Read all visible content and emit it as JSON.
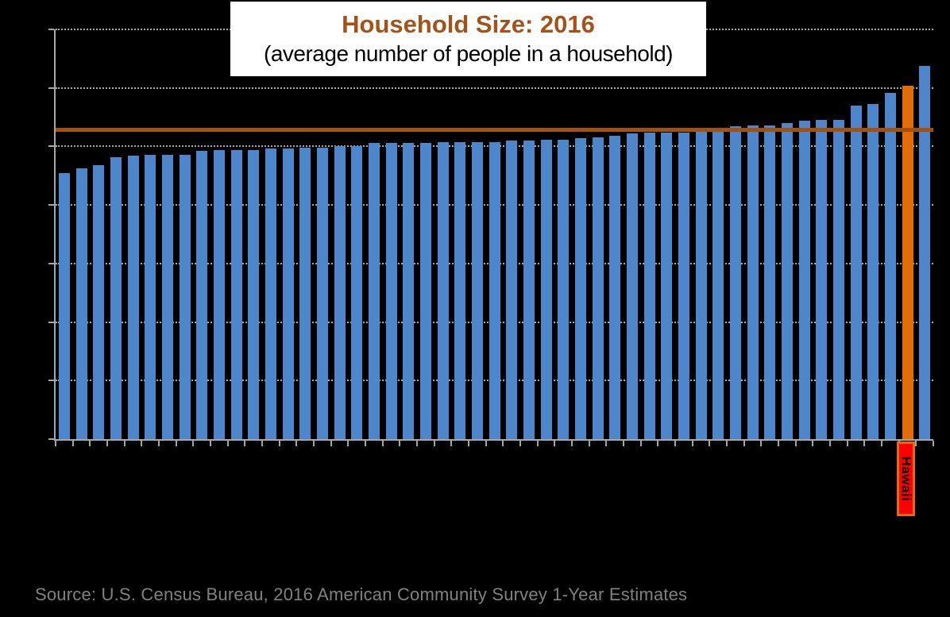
{
  "title": {
    "main": "Household Size: 2016",
    "subtitle": "(average number of people in a household)"
  },
  "source_note": "Source: U.S. Census Bureau, 2016 American Community Survey 1-Year Estimates",
  "highlight": {
    "label": "Hawaii"
  },
  "colors": {
    "background": "#000000",
    "bar": "#4E86CB",
    "highlight_bar": "#E36C09",
    "reference_line": "#A3520E",
    "title_accent": "#A4521A",
    "subtitle_text": "#000000",
    "gridline": "#ABABAB",
    "axis": "#A6A6A6",
    "source_text": "#818181",
    "highlight_label_bg": "#FF0000",
    "highlight_label_border": "#E36C09",
    "highlight_label_text": "#000000"
  },
  "chart_data": {
    "type": "bar",
    "title": "Household Size: 2016",
    "subtitle": "(average number of people in a household)",
    "categories": [
      "",
      "",
      "",
      "",
      "",
      "",
      "",
      "",
      "",
      "",
      "",
      "",
      "",
      "",
      "",
      "",
      "",
      "",
      "",
      "",
      "",
      "",
      "",
      "",
      "",
      "",
      "",
      "",
      "",
      "",
      "",
      "",
      "",
      "",
      "",
      "",
      "",
      "",
      "",
      "",
      "",
      "",
      "",
      "",
      "",
      "",
      "",
      "",
      "",
      "Hawaii",
      ""
    ],
    "values": [
      2.27,
      2.31,
      2.34,
      2.41,
      2.42,
      2.43,
      2.43,
      2.43,
      2.46,
      2.47,
      2.47,
      2.47,
      2.48,
      2.48,
      2.49,
      2.49,
      2.5,
      2.5,
      2.53,
      2.53,
      2.53,
      2.53,
      2.54,
      2.54,
      2.54,
      2.54,
      2.55,
      2.55,
      2.56,
      2.56,
      2.57,
      2.58,
      2.59,
      2.61,
      2.62,
      2.62,
      2.62,
      2.63,
      2.63,
      2.67,
      2.68,
      2.68,
      2.7,
      2.72,
      2.73,
      2.73,
      2.85,
      2.86,
      2.96,
      3.02,
      3.19
    ],
    "highlight_index": 49,
    "highlight_label": "Hawaii",
    "reference_line_value": 2.64,
    "ylim": [
      0,
      3.5
    ],
    "y_major_unit": 0.5,
    "gridlines": "dotted horizontal",
    "axis_tick_labels_visible": false,
    "legend": "none"
  }
}
